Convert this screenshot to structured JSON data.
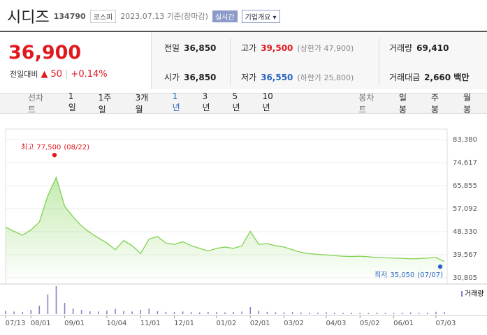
{
  "header": {
    "name": "시디즈",
    "code": "134790",
    "market": "코스피",
    "date": "2023.07.13 기준(장마감)",
    "realtime": "실시간",
    "dropdown": "기업개요"
  },
  "price": {
    "current": "36,900",
    "change_label": "전일대비",
    "change": "50",
    "percent": "+0.14%"
  },
  "stats": [
    {
      "label": "전일",
      "value": "36,850"
    },
    {
      "label": "고가",
      "value": "39,500",
      "note": "(상한가 47,900)"
    },
    {
      "label": "거래량",
      "value": "69,410"
    },
    {
      "label": "시가",
      "value": "36,850"
    },
    {
      "label": "저가",
      "value": "36,550",
      "note": "(하한가 25,800)"
    },
    {
      "label": "거래대금",
      "value": "2,660 백만"
    }
  ],
  "periods": {
    "label": "선차트",
    "items": [
      "1일",
      "1주일",
      "3개월",
      "1년",
      "3년",
      "5년",
      "10년"
    ],
    "selected": 3
  },
  "candles": {
    "label": "봉차트",
    "items": [
      "일봉",
      "주봉",
      "월봉"
    ]
  },
  "chart_data": {
    "type": "area",
    "color": "#7ed24e",
    "ylim": [
      30805,
      83380
    ],
    "yticks": [
      {
        "value": 30805,
        "label": "30,805"
      },
      {
        "value": 39567,
        "label": "39,567"
      },
      {
        "value": 48330,
        "label": "48,330"
      },
      {
        "value": 57092,
        "label": "57,092"
      },
      {
        "value": 65855,
        "label": "65,855"
      },
      {
        "value": 74617,
        "label": "74,617"
      },
      {
        "value": 83380,
        "label": "83,380"
      }
    ],
    "xticks": [
      {
        "value": 0,
        "label": "07/13"
      },
      {
        "value": 3,
        "label": "08/01"
      },
      {
        "value": 7,
        "label": "09/01"
      },
      {
        "value": 12,
        "label": "10/04"
      },
      {
        "value": 16,
        "label": "11/01"
      },
      {
        "value": 20,
        "label": "12/01"
      },
      {
        "value": 25,
        "label": "01/02"
      },
      {
        "value": 29,
        "label": "02/01"
      },
      {
        "value": 33,
        "label": "03/02"
      },
      {
        "value": 38,
        "label": "04/03"
      },
      {
        "value": 42,
        "label": "05/02"
      },
      {
        "value": 46,
        "label": "06/01"
      },
      {
        "value": 51,
        "label": "07/03"
      }
    ],
    "values": [
      50000,
      48500,
      47000,
      49000,
      52000,
      62000,
      69000,
      58000,
      54000,
      50500,
      48000,
      46000,
      44000,
      41500,
      45000,
      43000,
      40000,
      45500,
      46500,
      44000,
      43500,
      44500,
      43000,
      42000,
      41000,
      42000,
      42500,
      42000,
      43000,
      48500,
      43500,
      43800,
      43000,
      42500,
      41500,
      40500,
      40000,
      39700,
      39500,
      39200,
      39000,
      38900,
      39000,
      38800,
      38500,
      38400,
      38300,
      38200,
      38000,
      38100,
      38300,
      38500,
      37000
    ],
    "high": {
      "label": "최고",
      "value": 77500,
      "value_label": "77,500",
      "date": "(08/22)"
    },
    "low": {
      "label": "최저",
      "value": 35050,
      "value_label": "35,050",
      "date": "(07/07)"
    },
    "volume": {
      "name": "거래량",
      "color": "#8a7fc7",
      "values": [
        120000,
        90000,
        80000,
        150000,
        300000,
        700000,
        1000000,
        400000,
        200000,
        150000,
        100000,
        90000,
        120000,
        180000,
        110000,
        90000,
        150000,
        200000,
        100000,
        80000,
        70000,
        90000,
        70000,
        60000,
        80000,
        70000,
        60000,
        70000,
        90000,
        250000,
        120000,
        80000,
        60000,
        60000,
        70000,
        60000,
        50000,
        50000,
        60000,
        50000,
        40000,
        50000,
        40000,
        40000,
        50000,
        40000,
        40000,
        50000,
        60000,
        40000,
        50000,
        80000,
        70000
      ]
    }
  }
}
